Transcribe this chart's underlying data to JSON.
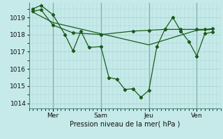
{
  "bg_color": "#c6eaea",
  "grid_color": "#a8d0d0",
  "line_color": "#1a5c1a",
  "xlabel": "Pression niveau de la mer( hPa )",
  "ylim": [
    1013.7,
    1019.85
  ],
  "yticks": [
    1014,
    1015,
    1016,
    1017,
    1018,
    1019
  ],
  "xlim": [
    0,
    24
  ],
  "vlines_x": [
    3,
    9,
    15,
    21
  ],
  "xtick_pos": [
    3,
    9,
    15,
    21
  ],
  "xtick_labels": [
    "Mer",
    "Sam",
    "Jeu",
    "Ven"
  ],
  "series1_x": [
    0.5,
    1.5,
    3,
    4.5,
    5.5,
    6.5,
    7.5,
    9,
    10,
    11,
    12,
    13,
    14,
    15,
    16,
    17,
    18,
    19,
    20,
    21,
    22,
    23
  ],
  "series1_y": [
    1019.5,
    1019.7,
    1019.15,
    1018.0,
    1017.05,
    1018.2,
    1017.25,
    1017.3,
    1015.5,
    1015.4,
    1014.8,
    1014.85,
    1014.35,
    1014.75,
    1017.3,
    1018.3,
    1019.0,
    1018.2,
    1017.6,
    1016.75,
    1018.05,
    1018.15
  ],
  "series2_x": [
    0.5,
    1.5,
    3,
    5.5,
    9,
    13,
    15,
    17,
    19,
    21,
    22,
    23
  ],
  "series2_y": [
    1019.35,
    1019.45,
    1018.55,
    1018.1,
    1018.0,
    1018.2,
    1018.25,
    1018.3,
    1018.3,
    1018.3,
    1018.3,
    1018.35
  ],
  "series3_x": [
    0.5,
    3,
    9,
    15,
    21,
    23
  ],
  "series3_y": [
    1019.3,
    1018.7,
    1018.05,
    1017.4,
    1018.25,
    1018.3
  ]
}
